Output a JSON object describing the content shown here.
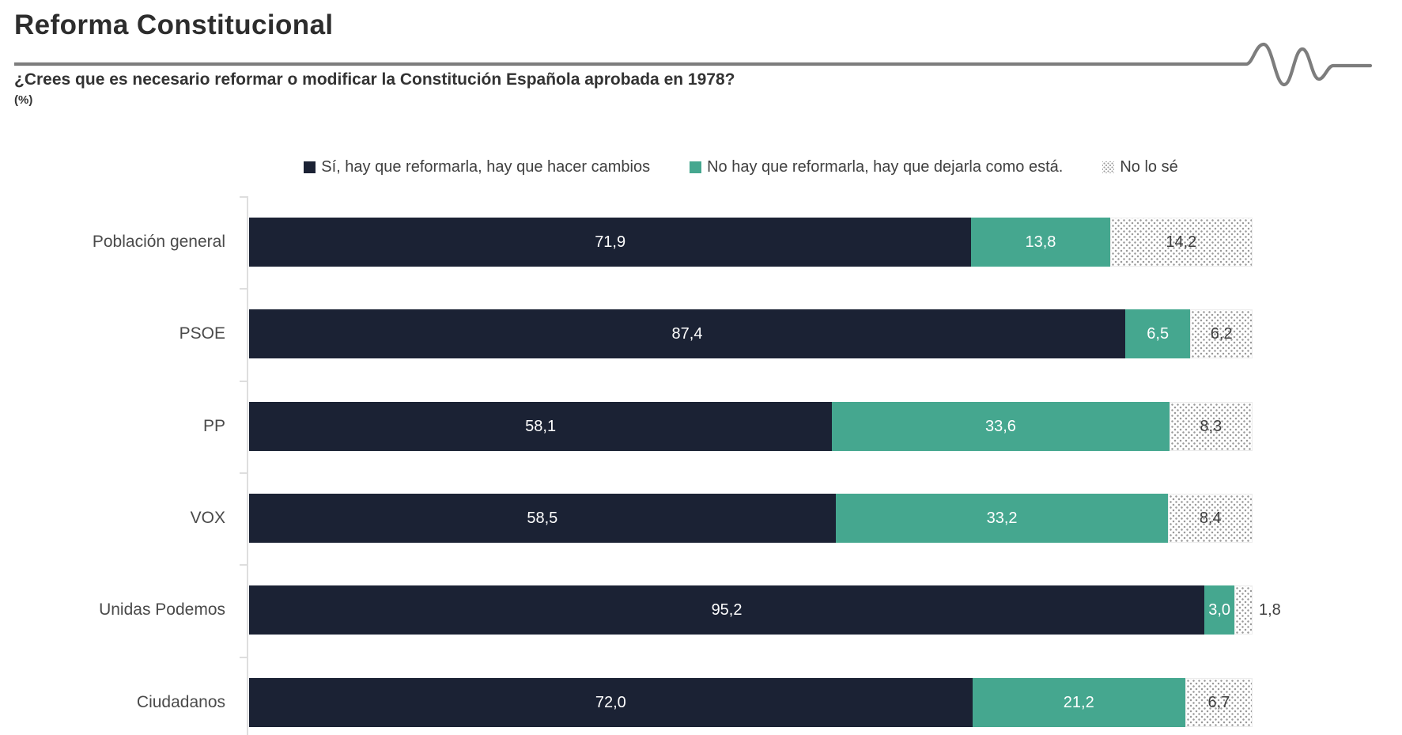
{
  "header": {
    "title": "Reforma Constitucional",
    "question": "¿Crees que es necesario reformar o modificar la Constitución Española aprobada en 1978?",
    "unit": "(%)"
  },
  "colors": {
    "yes_navy": "#1B2234",
    "no_teal": "#45A78F",
    "dont_know_dot": "#9B9B9B",
    "rule_gray": "#7D7D7D",
    "axis_gray": "#DEDEDE"
  },
  "chart_data": {
    "type": "bar",
    "orientation": "horizontal-stacked",
    "title": "Reforma Constitucional",
    "subtitle": "¿Crees que es necesario reformar o modificar la Constitución Española aprobada en 1978?",
    "value_unit": "(%)",
    "legend_position": "top-center",
    "xlim": [
      0,
      100
    ],
    "categories": [
      "Población general",
      "PSOE",
      "PP",
      "VOX",
      "Unidas Podemos",
      "Ciudadanos"
    ],
    "series": [
      {
        "name": "Sí, hay que reformarla, hay que hacer cambios",
        "style": "yes",
        "values": [
          71.9,
          87.4,
          58.1,
          58.5,
          95.2,
          72.0
        ],
        "labels": [
          "71,9",
          "87,4",
          "58,1",
          "58,5",
          "95,2",
          "72,0"
        ]
      },
      {
        "name": "No hay que reformarla, hay que dejarla como está.",
        "style": "no",
        "values": [
          13.8,
          6.5,
          33.6,
          33.2,
          3.0,
          21.2
        ],
        "labels": [
          "13,8",
          "6,5",
          "33,6",
          "33,2",
          "3,0",
          "21,2"
        ]
      },
      {
        "name": "No lo sé",
        "style": "dk",
        "values": [
          14.2,
          6.2,
          8.3,
          8.4,
          1.8,
          6.7
        ],
        "labels": [
          "14,2",
          "6,2",
          "8,3",
          "8,4",
          "1,8",
          "6,7"
        ]
      }
    ]
  }
}
